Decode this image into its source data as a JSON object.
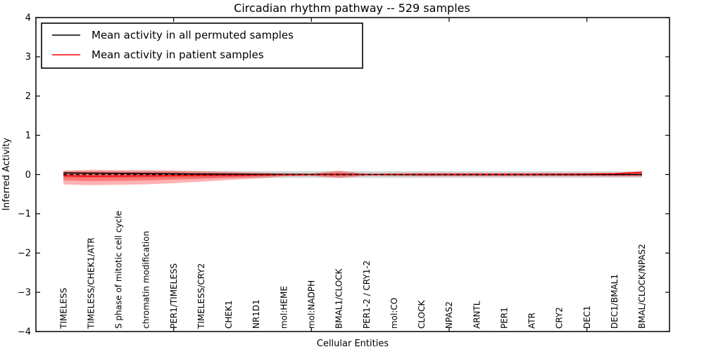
{
  "title": "Circadian rhythm pathway -- 529 samples",
  "xlabel": "Cellular Entities",
  "ylabel": "Inferred Activity",
  "legend": {
    "items": [
      {
        "label": "Mean activity in all permuted samples",
        "color": "#000000"
      },
      {
        "label": "Mean activity in patient samples",
        "color": "#ff0000"
      }
    ]
  },
  "chart_data": {
    "type": "line",
    "title": "Circadian rhythm pathway -- 529 samples",
    "xlabel": "Cellular Entities",
    "ylabel": "Inferred Activity",
    "ylim": [
      -4,
      4
    ],
    "yticks": [
      4,
      3,
      2,
      1,
      0,
      -1,
      -2,
      -3,
      -4
    ],
    "xtick_marks_at_category_index": [
      4,
      9,
      14,
      19
    ],
    "grid": false,
    "legend_position": "upper left",
    "categories": [
      "TIMELESS",
      "TIMELESS/CHEK1/ATR",
      "S phase of mitotic cell cycle",
      "chromatin modification",
      "PER1/TIMELESS",
      "TIMELESS/CRY2",
      "CHEK1",
      "NR1D1",
      "mol:HEME",
      "mol:NADPH",
      "BMAL1/CLOCK",
      "PER1-2 / CRY1-2",
      "mol:CO",
      "CLOCK",
      "NPAS2",
      "ARNTL",
      "PER1",
      "ATR",
      "CRY2",
      "DEC1",
      "DEC1/BMAL1",
      "BMAL/CLOCK/NPAS2"
    ],
    "series": [
      {
        "name": "Mean activity in all permuted samples",
        "color": "#000000",
        "style": "solid",
        "values": [
          0.04,
          0.035,
          0.03,
          0.025,
          0.02,
          0.015,
          0.01,
          0.008,
          0.005,
          0.003,
          0.002,
          0.001,
          0.0,
          0.0,
          0.0,
          0.0,
          0.0,
          0.0,
          0.0,
          0.0,
          0.0,
          0.0
        ]
      },
      {
        "name": "Mean activity in patient samples",
        "color": "#ff0000",
        "style": "solid",
        "values": [
          -0.03,
          -0.045,
          -0.04,
          -0.035,
          -0.03,
          -0.025,
          -0.02,
          -0.012,
          -0.005,
          -0.002,
          0.0,
          0.0,
          0.003,
          0.004,
          0.004,
          0.005,
          0.005,
          0.006,
          0.008,
          0.01,
          0.02,
          0.06
        ]
      },
      {
        "name": "zero reference",
        "color": "#000000",
        "style": "dashed",
        "values": [
          0,
          0,
          0,
          0,
          0,
          0,
          0,
          0,
          0,
          0,
          0,
          0,
          0,
          0,
          0,
          0,
          0,
          0,
          0,
          0,
          0,
          0
        ]
      }
    ],
    "bands": [
      {
        "name": "permuted std band",
        "color": "#999999",
        "opacity": 0.4,
        "upper": [
          0.09,
          0.09,
          0.09,
          0.09,
          0.09,
          0.09,
          0.09,
          0.088,
          0.086,
          0.085,
          0.085,
          0.085,
          0.085,
          0.085,
          0.085,
          0.085,
          0.085,
          0.085,
          0.085,
          0.085,
          0.08,
          0.08
        ],
        "lower": [
          -0.09,
          -0.09,
          -0.09,
          -0.09,
          -0.09,
          -0.09,
          -0.09,
          -0.088,
          -0.086,
          -0.085,
          -0.085,
          -0.085,
          -0.085,
          -0.085,
          -0.085,
          -0.085,
          -0.085,
          -0.085,
          -0.085,
          -0.085,
          -0.08,
          -0.08
        ]
      },
      {
        "name": "patient std outer band",
        "color": "#ff0000",
        "opacity": 0.3,
        "upper": [
          0.1,
          0.12,
          0.11,
          0.11,
          0.1,
          0.085,
          0.07,
          0.05,
          0.03,
          0.025,
          0.1,
          0.02,
          0.03,
          0.04,
          0.04,
          0.04,
          0.04,
          0.04,
          0.04,
          0.04,
          0.045,
          0.08
        ],
        "lower": [
          -0.25,
          -0.27,
          -0.26,
          -0.25,
          -0.22,
          -0.18,
          -0.14,
          -0.1,
          -0.05,
          -0.035,
          -0.09,
          -0.03,
          -0.035,
          -0.045,
          -0.045,
          -0.045,
          -0.045,
          -0.045,
          -0.045,
          -0.045,
          -0.05,
          -0.05
        ]
      },
      {
        "name": "patient std inner band",
        "color": "#ff0000",
        "opacity": 0.3,
        "upper": [
          0.06,
          0.07,
          0.065,
          0.06,
          0.055,
          0.045,
          0.035,
          0.025,
          0.015,
          0.012,
          0.05,
          0.01,
          0.015,
          0.02,
          0.02,
          0.02,
          0.02,
          0.02,
          0.02,
          0.02,
          0.025,
          0.05
        ],
        "lower": [
          -0.15,
          -0.17,
          -0.16,
          -0.15,
          -0.13,
          -0.11,
          -0.08,
          -0.055,
          -0.025,
          -0.018,
          -0.045,
          -0.015,
          -0.02,
          -0.025,
          -0.025,
          -0.025,
          -0.025,
          -0.025,
          -0.025,
          -0.025,
          -0.03,
          -0.03
        ]
      }
    ]
  }
}
